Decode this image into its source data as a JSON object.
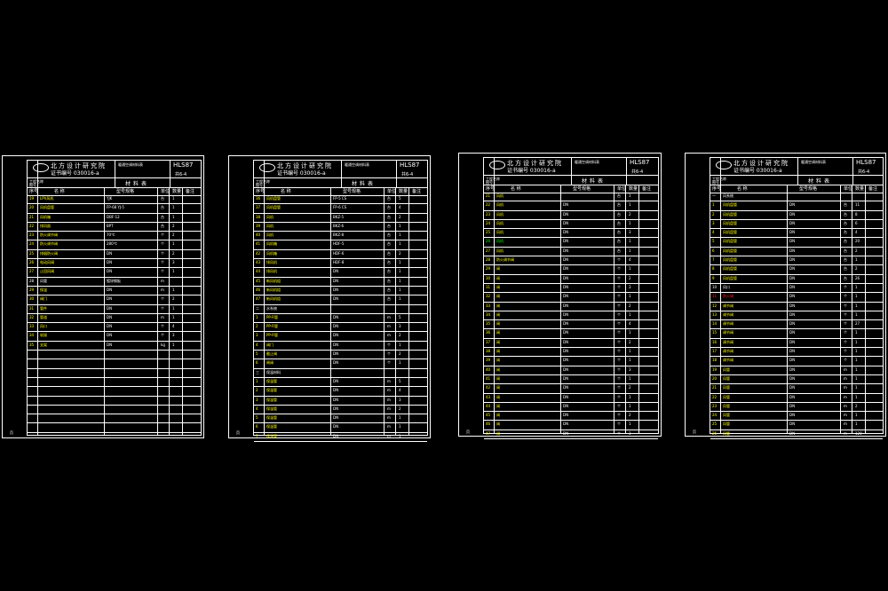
{
  "colors": {
    "background": "#000000",
    "line": "#ffffff",
    "yellow": "#ffff00",
    "green": "#00ff00",
    "red": "#ff2020"
  },
  "sheets": [
    {
      "title_block": {
        "institute": "北方设计研究院",
        "cert": "证书编号 030016-a",
        "code": "HLS87",
        "page": "共6-4",
        "project": "暖通空调材料表",
        "table_title": "材料表",
        "label1": "工程名称",
        "label2": "图号"
      },
      "header": {
        "no": "序号",
        "name": "名  称",
        "spec": "型号规格",
        "unit": "单位",
        "qty": "数量",
        "note": "备注"
      },
      "rows": [
        {
          "no": "19",
          "name": "LPV风机",
          "spec": "YJK",
          "unit": "台",
          "qty": "1",
          "c": "y"
        },
        {
          "no": "20",
          "name": "风机盘管",
          "spec": "FP-68 YJ-5",
          "unit": "台",
          "qty": "1",
          "c": "y"
        },
        {
          "no": "21",
          "name": "风机箱",
          "spec": "DBF-12",
          "unit": "台",
          "qty": "1",
          "c": "y"
        },
        {
          "no": "22",
          "name": "排风扇",
          "spec": "BPT",
          "unit": "台",
          "qty": "2",
          "c": "y"
        },
        {
          "no": "23",
          "name": "防火调节阀",
          "spec": "70℃",
          "unit": "个",
          "qty": "2",
          "c": "y"
        },
        {
          "no": "24",
          "name": "防火调节阀",
          "spec": "280℃",
          "unit": "个",
          "qty": "1",
          "c": "y"
        },
        {
          "no": "25",
          "name": "排烟防火阀",
          "spec": "DN",
          "unit": "个",
          "qty": "2",
          "c": "y"
        },
        {
          "no": "26",
          "name": "电动风阀",
          "spec": "DN",
          "unit": "个",
          "qty": "3",
          "c": "y"
        },
        {
          "no": "27",
          "name": "止回风阀",
          "spec": "DN",
          "unit": "个",
          "qty": "1",
          "c": "y"
        },
        {
          "no": "28",
          "name": "风管",
          "spec": "镀锌钢板",
          "unit": "m",
          "qty": "",
          "c": "w"
        },
        {
          "no": "29",
          "name": "保温",
          "spec": "DN",
          "unit": "m",
          "qty": "1",
          "c": "y"
        },
        {
          "no": "30",
          "name": "阀门",
          "spec": "DN",
          "unit": "个",
          "qty": "2",
          "c": "y"
        },
        {
          "no": "31",
          "name": "管件",
          "spec": "DN",
          "unit": "个",
          "qty": "1",
          "c": "y"
        },
        {
          "no": "32",
          "name": "管道",
          "spec": "DN",
          "unit": "m",
          "qty": "1",
          "c": "y"
        },
        {
          "no": "33",
          "name": "风口",
          "spec": "DN",
          "unit": "个",
          "qty": "4",
          "c": "y"
        },
        {
          "no": "34",
          "name": "软接",
          "spec": "DN",
          "unit": "个",
          "qty": "3",
          "c": "y"
        },
        {
          "no": "35",
          "name": "支架",
          "spec": "DN",
          "unit": "kg",
          "qty": "1",
          "c": "y"
        },
        {
          "no": "",
          "name": "",
          "spec": "",
          "unit": "",
          "qty": "",
          "c": "w"
        },
        {
          "no": "",
          "name": "",
          "spec": "",
          "unit": "",
          "qty": "",
          "c": "w"
        },
        {
          "no": "",
          "name": "",
          "spec": "",
          "unit": "",
          "qty": "",
          "c": "w"
        },
        {
          "no": "",
          "name": "",
          "spec": "",
          "unit": "",
          "qty": "",
          "c": "w"
        },
        {
          "no": "",
          "name": "",
          "spec": "",
          "unit": "",
          "qty": "",
          "c": "w"
        },
        {
          "no": "",
          "name": "",
          "spec": "",
          "unit": "",
          "qty": "",
          "c": "w"
        },
        {
          "no": "",
          "name": "",
          "spec": "",
          "unit": "",
          "qty": "",
          "c": "w"
        },
        {
          "no": "",
          "name": "",
          "spec": "",
          "unit": "",
          "qty": "",
          "c": "w"
        },
        {
          "no": "",
          "name": "",
          "spec": "",
          "unit": "",
          "qty": "",
          "c": "w"
        }
      ],
      "footer": "页"
    },
    {
      "title_block": {
        "institute": "北方设计研究院",
        "cert": "证书编号 030016-a",
        "code": "HLS87",
        "page": "共6-4",
        "project": "暖通空调材料表",
        "table_title": "材料表",
        "label1": "工程名称",
        "label2": "图号"
      },
      "header": {
        "no": "序号",
        "name": "名  称",
        "spec": "型号规格",
        "unit": "单位",
        "qty": "数量",
        "note": "备注"
      },
      "rows": [
        {
          "no": "36",
          "name": "风机盘管",
          "spec": "FP-5 CS",
          "unit": "台",
          "qty": "5",
          "c": "y"
        },
        {
          "no": "37",
          "name": "风机盘管",
          "spec": "FP-6 CS",
          "unit": "台",
          "qty": "4",
          "c": "y"
        },
        {
          "no": "38",
          "name": "风机",
          "spec": "BKZ-5",
          "unit": "台",
          "qty": "2",
          "c": "y"
        },
        {
          "no": "39",
          "name": "风机",
          "spec": "BKZ-6",
          "unit": "台",
          "qty": "1",
          "c": "y"
        },
        {
          "no": "40",
          "name": "风机",
          "spec": "BKZ-8",
          "unit": "台",
          "qty": "1",
          "c": "y"
        },
        {
          "no": "41",
          "name": "风机箱",
          "spec": "HDF-5",
          "unit": "台",
          "qty": "1",
          "c": "y"
        },
        {
          "no": "42",
          "name": "风机箱",
          "spec": "HDF-6",
          "unit": "台",
          "qty": "2",
          "c": "y"
        },
        {
          "no": "43",
          "name": "排风机",
          "spec": "HDF-8",
          "unit": "台",
          "qty": "1",
          "c": "y"
        },
        {
          "no": "44",
          "name": "排风机",
          "spec": "DN",
          "unit": "台",
          "qty": "1",
          "c": "y"
        },
        {
          "no": "45",
          "name": "新风机组",
          "spec": "DN",
          "unit": "台",
          "qty": "1",
          "c": "y"
        },
        {
          "no": "46",
          "name": "新风机组",
          "spec": "DN",
          "unit": "台",
          "qty": "1",
          "c": "y"
        },
        {
          "no": "47",
          "name": "新风机组",
          "spec": "DN",
          "unit": "台",
          "qty": "1",
          "c": "y"
        },
        {
          "no": "二",
          "name": "水系统",
          "spec": "",
          "unit": "",
          "qty": "",
          "c": "w"
        },
        {
          "no": "1",
          "name": "PP-R管",
          "spec": "DN",
          "unit": "m",
          "qty": "5",
          "c": "y"
        },
        {
          "no": "2",
          "name": "PP-R管",
          "spec": "DN",
          "unit": "m",
          "qty": "3",
          "c": "y"
        },
        {
          "no": "3",
          "name": "PP-R管",
          "spec": "DN",
          "unit": "m",
          "qty": "2",
          "c": "y"
        },
        {
          "no": "4",
          "name": "阀门",
          "spec": "DN",
          "unit": "个",
          "qty": "1",
          "c": "y"
        },
        {
          "no": "5",
          "name": "截止阀",
          "spec": "DN",
          "unit": "个",
          "qty": "2",
          "c": "y"
        },
        {
          "no": "6",
          "name": "闸阀",
          "spec": "DN",
          "unit": "个",
          "qty": "1",
          "c": "y"
        },
        {
          "no": "三",
          "name": "保温材料",
          "spec": "",
          "unit": "",
          "qty": "",
          "c": "w"
        },
        {
          "no": "1",
          "name": "保温管",
          "spec": "DN",
          "unit": "m",
          "qty": "5",
          "c": "y"
        },
        {
          "no": "2",
          "name": "保温管",
          "spec": "DN",
          "unit": "m",
          "qty": "4",
          "c": "y"
        },
        {
          "no": "3",
          "name": "保温管",
          "spec": "DN",
          "unit": "m",
          "qty": "3",
          "c": "y"
        },
        {
          "no": "4",
          "name": "保温管",
          "spec": "DN",
          "unit": "m",
          "qty": "2",
          "c": "y"
        },
        {
          "no": "5",
          "name": "保温管",
          "spec": "DN",
          "unit": "m",
          "qty": "1",
          "c": "y"
        },
        {
          "no": "6",
          "name": "保温管",
          "spec": "DN",
          "unit": "m",
          "qty": "1",
          "c": "y"
        },
        {
          "no": "7",
          "name": "保温管",
          "spec": "DN",
          "unit": "m",
          "qty": "1",
          "c": "y"
        }
      ],
      "footer": "页"
    },
    {
      "title_block": {
        "institute": "北方设计研究院",
        "cert": "证书编号 030016-a",
        "code": "HLS87",
        "page": "共6-4",
        "project": "暖通空调材料表",
        "table_title": "材料表",
        "label1": "工程名称",
        "label2": "图号"
      },
      "header": {
        "no": "序号",
        "name": "名  称",
        "spec": "型号规格",
        "unit": "单位",
        "qty": "数量",
        "note": "备注"
      },
      "rows": [
        {
          "no": "21",
          "name": "风机",
          "spec": "",
          "unit": "台",
          "qty": "1",
          "c": "y"
        },
        {
          "no": "22",
          "name": "风机",
          "spec": "DN",
          "unit": "台",
          "qty": "1",
          "c": "y"
        },
        {
          "no": "23",
          "name": "风机",
          "spec": "DN",
          "unit": "台",
          "qty": "2",
          "c": "y"
        },
        {
          "no": "24",
          "name": "风机",
          "spec": "DN",
          "unit": "台",
          "qty": "1",
          "c": "y"
        },
        {
          "no": "25",
          "name": "风机",
          "spec": "DN",
          "unit": "台",
          "qty": "3",
          "c": "y"
        },
        {
          "no": "26",
          "name": "风机",
          "spec": "DN",
          "unit": "台",
          "qty": "1",
          "c": "g"
        },
        {
          "no": "27",
          "name": "风机",
          "spec": "DN",
          "unit": "台",
          "qty": "1",
          "c": "y"
        },
        {
          "no": "28",
          "name": "防火调节阀",
          "spec": "DN",
          "unit": "个",
          "qty": "4",
          "c": "y"
        },
        {
          "no": "29",
          "name": "阀",
          "spec": "DN",
          "unit": "个",
          "qty": "1",
          "c": "y"
        },
        {
          "no": "30",
          "name": "阀",
          "spec": "DN",
          "unit": "个",
          "qty": "2",
          "c": "y"
        },
        {
          "no": "31",
          "name": "阀",
          "spec": "DN",
          "unit": "个",
          "qty": "3",
          "c": "y"
        },
        {
          "no": "32",
          "name": "阀",
          "spec": "DN",
          "unit": "个",
          "qty": "1",
          "c": "y"
        },
        {
          "no": "33",
          "name": "阀",
          "spec": "DN",
          "unit": "个",
          "qty": "2",
          "c": "y"
        },
        {
          "no": "34",
          "name": "阀",
          "spec": "DN",
          "unit": "个",
          "qty": "1",
          "c": "y"
        },
        {
          "no": "35",
          "name": "阀",
          "spec": "DN",
          "unit": "个",
          "qty": "4",
          "c": "y"
        },
        {
          "no": "36",
          "name": "阀",
          "spec": "DN",
          "unit": "个",
          "qty": "1",
          "c": "y"
        },
        {
          "no": "37",
          "name": "阀",
          "spec": "DN",
          "unit": "个",
          "qty": "2",
          "c": "y"
        },
        {
          "no": "38",
          "name": "阀",
          "spec": "DN",
          "unit": "个",
          "qty": "1",
          "c": "y"
        },
        {
          "no": "39",
          "name": "阀",
          "spec": "DN",
          "unit": "个",
          "qty": "1",
          "c": "y"
        },
        {
          "no": "40",
          "name": "阀",
          "spec": "DN",
          "unit": "个",
          "qty": "3",
          "c": "y"
        },
        {
          "no": "41",
          "name": "阀",
          "spec": "DN",
          "unit": "个",
          "qty": "1",
          "c": "y"
        },
        {
          "no": "42",
          "name": "阀",
          "spec": "DN",
          "unit": "个",
          "qty": "2",
          "c": "y"
        },
        {
          "no": "43",
          "name": "阀",
          "spec": "DN",
          "unit": "个",
          "qty": "1",
          "c": "y"
        },
        {
          "no": "44",
          "name": "阀",
          "spec": "DN",
          "unit": "个",
          "qty": "1",
          "c": "y"
        },
        {
          "no": "45",
          "name": "阀",
          "spec": "DN",
          "unit": "个",
          "qty": "2",
          "c": "y"
        },
        {
          "no": "46",
          "name": "阀",
          "spec": "DN",
          "unit": "个",
          "qty": "1",
          "c": "y"
        },
        {
          "no": "47",
          "name": "阀",
          "spec": "DN",
          "unit": "个",
          "qty": "3",
          "c": "y"
        }
      ],
      "footer": "页"
    },
    {
      "title_block": {
        "institute": "北方设计研究院",
        "cert": "证书编号 030016-a",
        "code": "HLS87",
        "page": "共6-4",
        "project": "暖通空调材料表",
        "table_title": "材料表",
        "label1": "工程名称",
        "label2": "图号"
      },
      "header": {
        "no": "序号",
        "name": "名  称",
        "spec": "型号规格",
        "unit": "单位",
        "qty": "数量",
        "note": "备注"
      },
      "rows": [
        {
          "no": "一",
          "name": "风系统",
          "spec": "",
          "unit": "",
          "qty": "",
          "c": "w"
        },
        {
          "no": "1",
          "name": "风机盘管",
          "spec": "DN",
          "unit": "台",
          "qty": "11",
          "c": "y"
        },
        {
          "no": "2",
          "name": "风机盘管",
          "spec": "DN",
          "unit": "台",
          "qty": "8",
          "c": "y"
        },
        {
          "no": "3",
          "name": "风机盘管",
          "spec": "DN",
          "unit": "台",
          "qty": "6",
          "c": "y"
        },
        {
          "no": "4",
          "name": "风机盘管",
          "spec": "DN",
          "unit": "台",
          "qty": "4",
          "c": "y"
        },
        {
          "no": "5",
          "name": "风机盘管",
          "spec": "DN",
          "unit": "台",
          "qty": "20",
          "c": "y"
        },
        {
          "no": "6",
          "name": "风机盘管",
          "spec": "DN",
          "unit": "台",
          "qty": "2",
          "c": "y"
        },
        {
          "no": "7",
          "name": "风机盘管",
          "spec": "DN",
          "unit": "台",
          "qty": "1",
          "c": "y"
        },
        {
          "no": "8",
          "name": "风机盘管",
          "spec": "DN",
          "unit": "台",
          "qty": "2",
          "c": "y"
        },
        {
          "no": "9",
          "name": "风机盘管",
          "spec": "DN",
          "unit": "台",
          "qty": "26",
          "c": "y"
        },
        {
          "no": "10",
          "name": "风口",
          "spec": "DN",
          "unit": "个",
          "qty": "1",
          "c": "w"
        },
        {
          "no": "11",
          "name": "防火阀",
          "spec": "DN",
          "unit": "个",
          "qty": "1",
          "c": "r"
        },
        {
          "no": "12",
          "name": "调节阀",
          "spec": "DN",
          "unit": "个",
          "qty": "1",
          "c": "y"
        },
        {
          "no": "13",
          "name": "调节阀",
          "spec": "DN",
          "unit": "个",
          "qty": "1",
          "c": "y"
        },
        {
          "no": "14",
          "name": "调节阀",
          "spec": "DN",
          "unit": "个",
          "qty": "27",
          "c": "y"
        },
        {
          "no": "15",
          "name": "调节阀",
          "spec": "DN",
          "unit": "个",
          "qty": "1",
          "c": "y"
        },
        {
          "no": "16",
          "name": "调节阀",
          "spec": "DN",
          "unit": "个",
          "qty": "1",
          "c": "y"
        },
        {
          "no": "17",
          "name": "调节阀",
          "spec": "DN",
          "unit": "个",
          "qty": "1",
          "c": "y"
        },
        {
          "no": "18",
          "name": "调节阀",
          "spec": "DN",
          "unit": "个",
          "qty": "1",
          "c": "y"
        },
        {
          "no": "19",
          "name": "风管",
          "spec": "DN",
          "unit": "m",
          "qty": "1",
          "c": "y"
        },
        {
          "no": "20",
          "name": "风管",
          "spec": "DN",
          "unit": "m",
          "qty": "1",
          "c": "y"
        },
        {
          "no": "21",
          "name": "风管",
          "spec": "DN",
          "unit": "m",
          "qty": "1",
          "c": "y"
        },
        {
          "no": "22",
          "name": "风管",
          "spec": "DN",
          "unit": "m",
          "qty": "1",
          "c": "y"
        },
        {
          "no": "23",
          "name": "风管",
          "spec": "DN",
          "unit": "m",
          "qty": "2",
          "c": "y"
        },
        {
          "no": "24",
          "name": "风管",
          "spec": "DN",
          "unit": "m",
          "qty": "1",
          "c": "y"
        },
        {
          "no": "25",
          "name": "风管",
          "spec": "DN",
          "unit": "m",
          "qty": "1",
          "c": "y"
        },
        {
          "no": "26",
          "name": "风管",
          "spec": "DN",
          "unit": "m",
          "qty": "120",
          "c": "y"
        }
      ],
      "footer": "页"
    }
  ]
}
